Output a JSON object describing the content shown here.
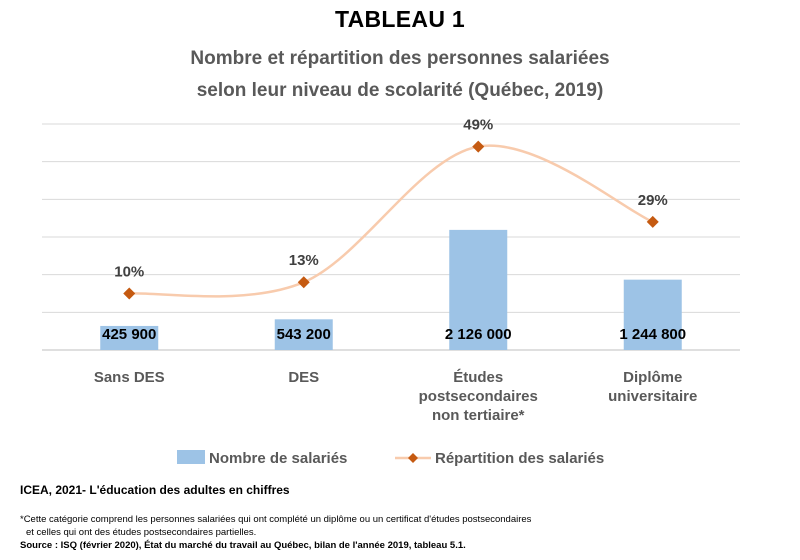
{
  "title": "TABLEAU 1",
  "subtitle_line1": "Nombre et répartition des personnes salariées",
  "subtitle_line2": "selon leur niveau de scolarité (Québec, 2019)",
  "chart_data": {
    "type": "bar",
    "categories": [
      [
        "Sans DES"
      ],
      [
        "DES"
      ],
      [
        "Études",
        "postsecondaires",
        "non tertiaire*"
      ],
      [
        "Diplôme",
        "universitaire"
      ]
    ],
    "series": [
      {
        "name": "Nombre de salariés",
        "kind": "bar",
        "color": "#9DC3E6",
        "values": [
          425900,
          543200,
          2126000,
          1244800
        ],
        "labels": [
          "425 900",
          "543 200",
          "2 126 000",
          "1 244 800"
        ]
      },
      {
        "name": "Répartition des salariés",
        "kind": "line",
        "smooth": true,
        "line_color": "#F8CBAD",
        "marker": "diamond",
        "marker_color": "#C55A11",
        "values": [
          10,
          13,
          49,
          29
        ],
        "labels": [
          "10%",
          "13%",
          "49%",
          "29%"
        ]
      }
    ],
    "ylim_bars": [
      0,
      4000000
    ],
    "ylim_line": [
      -5,
      55
    ],
    "grid": true,
    "legend_position": "bottom"
  },
  "footer": {
    "source_line": "ICEA, 2021- L'éducation des adultes en chiffres",
    "note_line1": "*Cette catégorie comprend les personnes salariées qui ont complété un diplôme ou un certificat d'études postsecondaires",
    "note_line2": "et celles qui ont des études postsecondaires partielles.",
    "reference": "Source : ISQ (février 2020), État du marché du travail au Québec, bilan de l'année 2019, tableau 5.1."
  }
}
